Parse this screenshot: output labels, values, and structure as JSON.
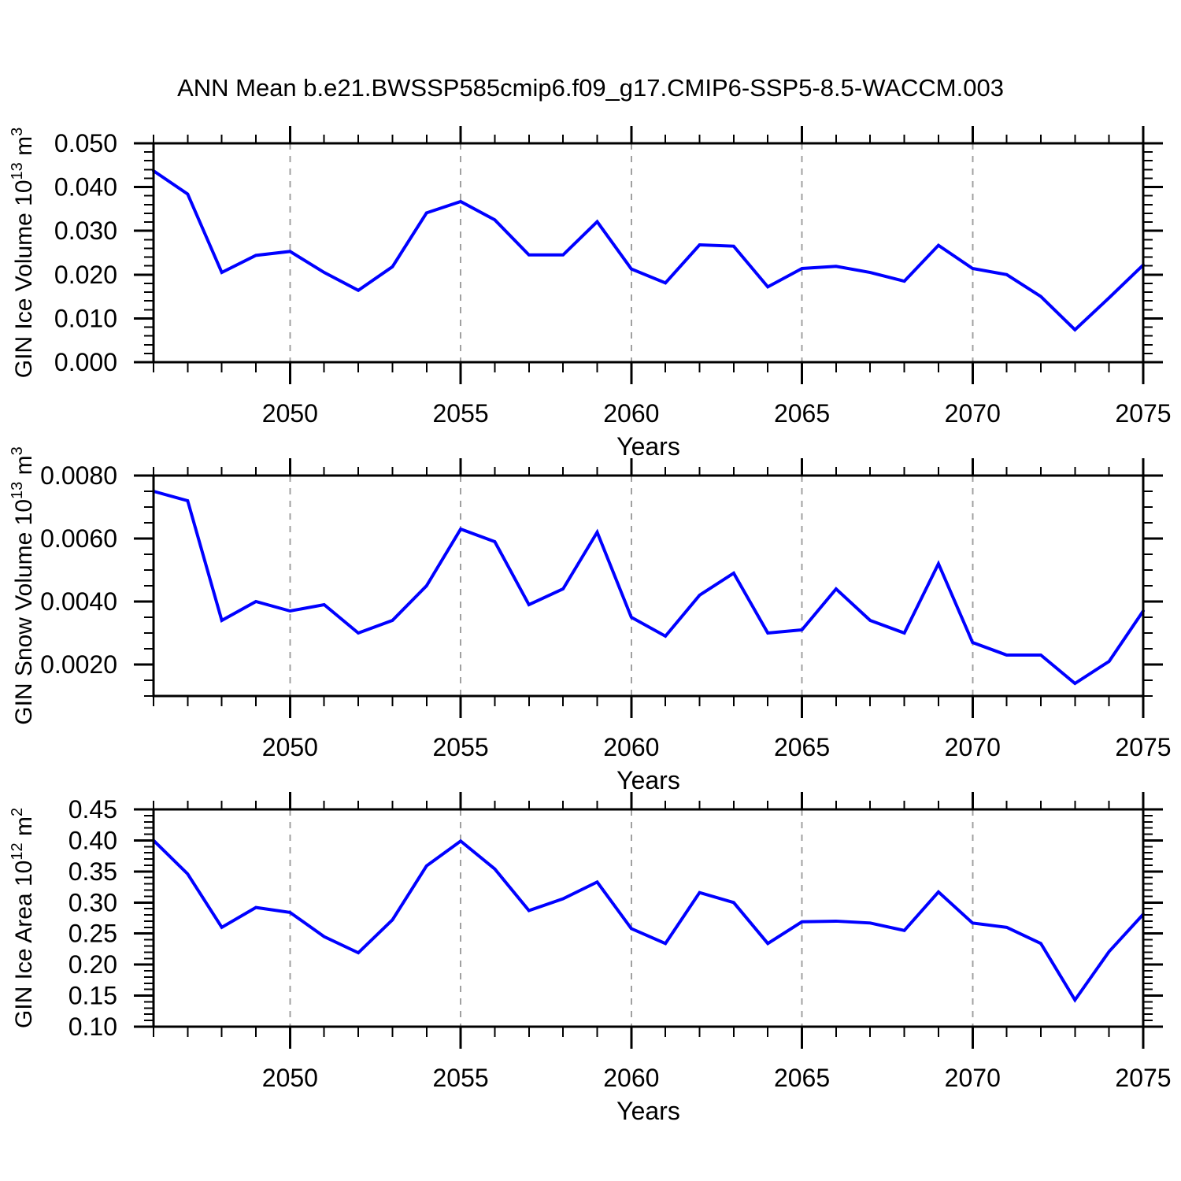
{
  "title": "ANN Mean b.e21.BWSSP585cmip6.f09_g17.CMIP6-SSP5-8.5-WACCM.003",
  "figure": {
    "background": "#ffffff",
    "line_color": "#0000ff",
    "grid_color": "#a0a0a0",
    "axis_color": "#000000"
  },
  "chart_data": [
    {
      "type": "line",
      "ylabel_plain": "GIN Ice Volume 10^13 m^3",
      "ylabel_parts": [
        {
          "t": "GIN Ice Volume 10",
          "sup": false
        },
        {
          "t": "13",
          "sup": true
        },
        {
          "t": " m",
          "sup": false
        },
        {
          "t": "3",
          "sup": true
        }
      ],
      "xlabel": "Years",
      "x": [
        2046,
        2047,
        2048,
        2049,
        2050,
        2051,
        2052,
        2053,
        2054,
        2055,
        2056,
        2057,
        2058,
        2059,
        2060,
        2061,
        2062,
        2063,
        2064,
        2065,
        2066,
        2067,
        2068,
        2069,
        2070,
        2071,
        2072,
        2073,
        2074,
        2075
      ],
      "values": [
        0.0437,
        0.0384,
        0.0205,
        0.0244,
        0.0253,
        0.0205,
        0.0164,
        0.0218,
        0.0341,
        0.0367,
        0.0325,
        0.0245,
        0.0245,
        0.0321,
        0.0213,
        0.0181,
        0.0268,
        0.0265,
        0.0172,
        0.0214,
        0.0219,
        0.0205,
        0.0185,
        0.0267,
        0.0214,
        0.02,
        0.015,
        0.0074,
        0.0147,
        0.0222
      ],
      "xlim": [
        2046,
        2075
      ],
      "ylim": [
        0.0,
        0.05
      ],
      "yticks": [
        0.0,
        0.01,
        0.02,
        0.03,
        0.04,
        0.05
      ],
      "ytick_labels": [
        "0.000",
        "0.010",
        "0.020",
        "0.030",
        "0.040",
        "0.050"
      ],
      "y_minor_step": 0.002,
      "xticks": [
        2050,
        2055,
        2060,
        2065,
        2070,
        2075
      ],
      "xtick_labels": [
        "2050",
        "2055",
        "2060",
        "2065",
        "2070",
        "2075"
      ],
      "x_minor_step": 1,
      "grid_x": [
        2050,
        2055,
        2060,
        2065,
        2070
      ],
      "grid_style": "vertical-dashed"
    },
    {
      "type": "line",
      "ylabel_plain": "GIN Snow Volume 10^13 m^3",
      "ylabel_parts": [
        {
          "t": "GIN Snow Volume 10",
          "sup": false
        },
        {
          "t": "13",
          "sup": true
        },
        {
          "t": " m",
          "sup": false
        },
        {
          "t": "3",
          "sup": true
        }
      ],
      "xlabel": "Years",
      "x": [
        2046,
        2047,
        2048,
        2049,
        2050,
        2051,
        2052,
        2053,
        2054,
        2055,
        2056,
        2057,
        2058,
        2059,
        2060,
        2061,
        2062,
        2063,
        2064,
        2065,
        2066,
        2067,
        2068,
        2069,
        2070,
        2071,
        2072,
        2073,
        2074,
        2075
      ],
      "values": [
        0.0075,
        0.0072,
        0.0034,
        0.004,
        0.0037,
        0.0039,
        0.003,
        0.0034,
        0.0045,
        0.0063,
        0.0059,
        0.0039,
        0.0044,
        0.0062,
        0.0035,
        0.0029,
        0.0042,
        0.0049,
        0.003,
        0.0031,
        0.0044,
        0.0034,
        0.003,
        0.0052,
        0.0027,
        0.0023,
        0.0023,
        0.0014,
        0.0021,
        0.0037
      ],
      "xlim": [
        2046,
        2075
      ],
      "ylim": [
        0.001,
        0.008
      ],
      "yticks": [
        0.002,
        0.004,
        0.006,
        0.008
      ],
      "ytick_labels": [
        "0.0020",
        "0.0040",
        "0.0060",
        "0.0080"
      ],
      "y_minor_step": 0.0005,
      "xticks": [
        2050,
        2055,
        2060,
        2065,
        2070,
        2075
      ],
      "xtick_labels": [
        "2050",
        "2055",
        "2060",
        "2065",
        "2070",
        "2075"
      ],
      "x_minor_step": 1,
      "grid_x": [
        2050,
        2055,
        2060,
        2065,
        2070
      ],
      "grid_style": "vertical-dashed"
    },
    {
      "type": "line",
      "ylabel_plain": "GIN Ice Area 10^12 m^2",
      "ylabel_parts": [
        {
          "t": "GIN Ice Area 10",
          "sup": false
        },
        {
          "t": "12",
          "sup": true
        },
        {
          "t": " m",
          "sup": false
        },
        {
          "t": "2",
          "sup": true
        }
      ],
      "xlabel": "Years",
      "x": [
        2046,
        2047,
        2048,
        2049,
        2050,
        2051,
        2052,
        2053,
        2054,
        2055,
        2056,
        2057,
        2058,
        2059,
        2060,
        2061,
        2062,
        2063,
        2064,
        2065,
        2066,
        2067,
        2068,
        2069,
        2070,
        2071,
        2072,
        2073,
        2074,
        2075
      ],
      "values": [
        0.4,
        0.346,
        0.26,
        0.292,
        0.284,
        0.245,
        0.219,
        0.272,
        0.359,
        0.399,
        0.354,
        0.287,
        0.306,
        0.333,
        0.258,
        0.234,
        0.316,
        0.3,
        0.234,
        0.269,
        0.27,
        0.267,
        0.255,
        0.317,
        0.267,
        0.26,
        0.234,
        0.143,
        0.221,
        0.281
      ],
      "xlim": [
        2046,
        2075
      ],
      "ylim": [
        0.1,
        0.45
      ],
      "yticks": [
        0.1,
        0.15,
        0.2,
        0.25,
        0.3,
        0.35,
        0.4,
        0.45
      ],
      "ytick_labels": [
        "0.10",
        "0.15",
        "0.20",
        "0.25",
        "0.30",
        "0.35",
        "0.40",
        "0.45"
      ],
      "y_minor_step": 0.01,
      "xticks": [
        2050,
        2055,
        2060,
        2065,
        2070,
        2075
      ],
      "xtick_labels": [
        "2050",
        "2055",
        "2060",
        "2065",
        "2070",
        "2075"
      ],
      "x_minor_step": 1,
      "grid_x": [
        2050,
        2055,
        2060,
        2065,
        2070
      ],
      "grid_style": "vertical-dashed"
    }
  ]
}
